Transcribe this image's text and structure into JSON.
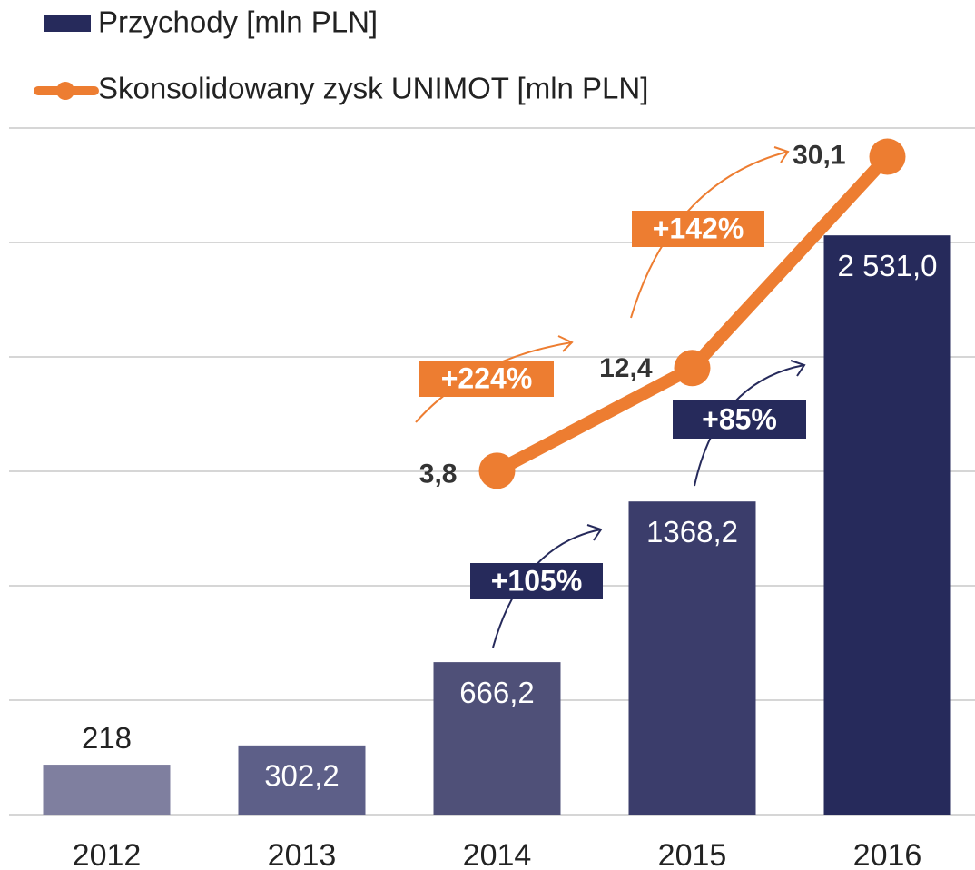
{
  "chart_data": {
    "type": "bar",
    "categories": [
      "2012",
      "2013",
      "2014",
      "2015",
      "2016"
    ],
    "series": [
      {
        "name": "Przychody [mln PLN]",
        "type": "bar",
        "color": "#262a5b",
        "colors": [
          "#7f7f9f",
          "#5d5f88",
          "#4f5078",
          "#3b3d6b",
          "#262a5b"
        ],
        "values": [
          218,
          302.2,
          666.2,
          1368.2,
          2531.0
        ],
        "value_labels": [
          "218",
          "302,2",
          "666,2",
          "1368,2",
          "2 531,0"
        ]
      },
      {
        "name": "Skonsolidowany zysk UNIMOT [mln PLN]",
        "type": "line",
        "axis": "y2",
        "color": "#ed7d31",
        "values": [
          null,
          null,
          3.8,
          12.4,
          30.1
        ],
        "value_labels": [
          null,
          null,
          "3,8",
          "12,4",
          "30,1"
        ]
      }
    ],
    "annotations": [
      {
        "text": "+224%",
        "color": "#ed7d31"
      },
      {
        "text": "+142%",
        "color": "#ed7d31"
      },
      {
        "text": "+105%",
        "color": "#262a5b"
      },
      {
        "text": "+85%",
        "color": "#262a5b"
      }
    ],
    "ylim": [
      0,
      3000
    ],
    "yticks": [
      0,
      500,
      1000,
      1500,
      2000,
      2500,
      3000
    ],
    "y2lim": [
      -25,
      32.5
    ],
    "grid": true,
    "legend": "top-left"
  }
}
